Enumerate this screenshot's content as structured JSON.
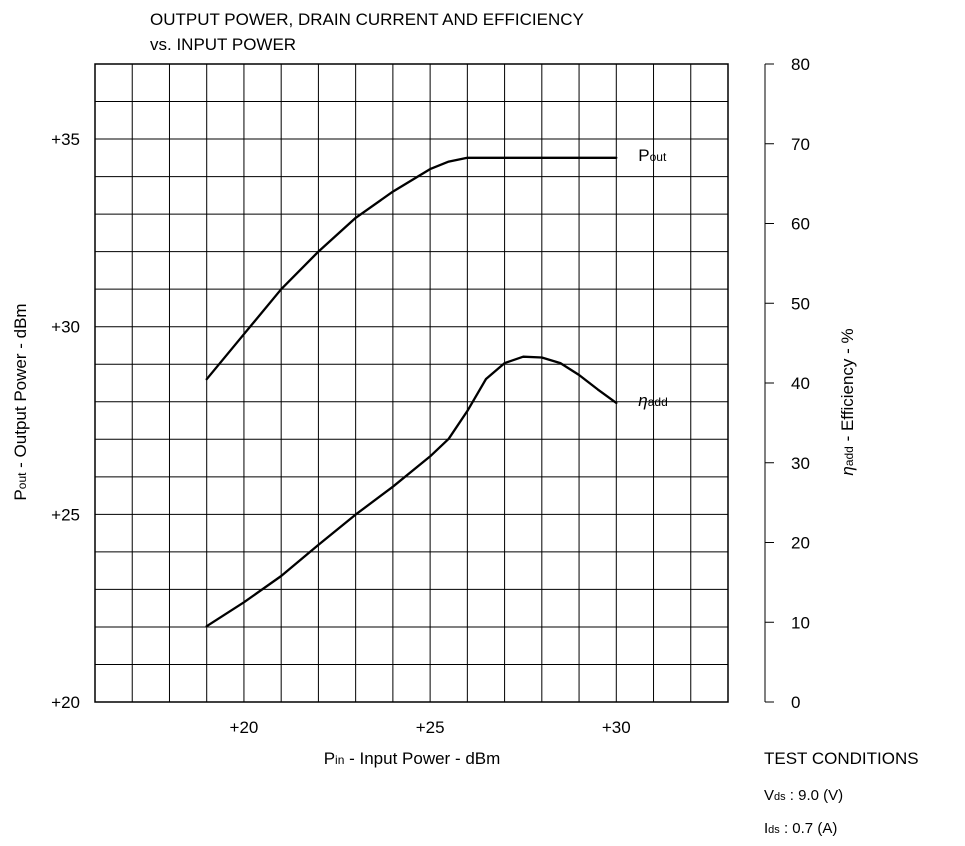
{
  "chart_data": {
    "type": "line",
    "title_line1": "OUTPUT POWER, DRAIN CURRENT AND EFFICIENCY",
    "title_line2": "vs. INPUT POWER",
    "xlabel": {
      "main": "P",
      "sub": "in",
      "rest": " - Input Power - dBm"
    },
    "ylabel_left": {
      "main": "P",
      "sub": "out",
      "rest": " - Output Power - dBm"
    },
    "ylabel_right": {
      "main": "η",
      "sub": "add",
      "rest": " - Efficiency - %"
    },
    "xlim": [
      16,
      33
    ],
    "ylim_left": [
      20,
      37
    ],
    "ylim_right": [
      0,
      80
    ],
    "x_ticks": [
      {
        "value": 20,
        "label": "+20"
      },
      {
        "value": 25,
        "label": "+25"
      },
      {
        "value": 30,
        "label": "+30"
      }
    ],
    "y_ticks_left": [
      {
        "value": 20,
        "label": "+20"
      },
      {
        "value": 25,
        "label": "+25"
      },
      {
        "value": 30,
        "label": "+30"
      },
      {
        "value": 35,
        "label": "+35"
      }
    ],
    "y_ticks_right": [
      {
        "value": 0,
        "label": "0"
      },
      {
        "value": 10,
        "label": "10"
      },
      {
        "value": 20,
        "label": "20"
      },
      {
        "value": 30,
        "label": "30"
      },
      {
        "value": 40,
        "label": "40"
      },
      {
        "value": 50,
        "label": "50"
      },
      {
        "value": 60,
        "label": "60"
      },
      {
        "value": 70,
        "label": "70"
      },
      {
        "value": 80,
        "label": "80"
      }
    ],
    "grid": true,
    "series": [
      {
        "label_main": "P",
        "label_sub": "out",
        "label_italic": false,
        "axis": "left",
        "x": [
          19,
          20,
          21,
          22,
          23,
          24,
          25,
          25.5,
          26,
          27,
          28,
          29,
          30
        ],
        "y": [
          28.6,
          29.8,
          31.0,
          32.0,
          32.9,
          33.6,
          34.2,
          34.4,
          34.5,
          34.5,
          34.5,
          34.5,
          34.5
        ]
      },
      {
        "label_main": "η",
        "label_sub": "add",
        "label_italic": true,
        "axis": "right",
        "x": [
          19,
          20,
          21,
          22,
          23,
          24,
          25,
          25.5,
          26,
          26.5,
          27,
          27.5,
          28,
          28.5,
          29,
          29.5,
          30
        ],
        "y": [
          9.5,
          12.5,
          15.8,
          19.7,
          23.5,
          27.0,
          30.8,
          33.0,
          36.5,
          40.5,
          42.5,
          43.3,
          43.2,
          42.5,
          41.0,
          39.2,
          37.5
        ]
      }
    ]
  },
  "test_conditions": {
    "heading": "TEST CONDITIONS",
    "lines": [
      {
        "main": "V",
        "sub": "ds",
        "rest": " :  9.0 (V)"
      },
      {
        "main": "I",
        "sub": "ds",
        "rest": "  :  0.7 (A)"
      }
    ]
  }
}
